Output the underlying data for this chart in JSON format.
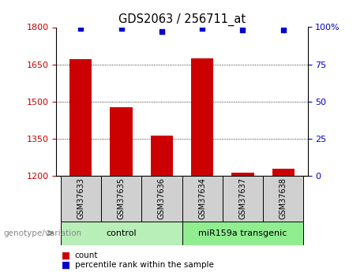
{
  "title": "GDS2063 / 256711_at",
  "samples": [
    "GSM37633",
    "GSM37635",
    "GSM37636",
    "GSM37634",
    "GSM37637",
    "GSM37638"
  ],
  "counts": [
    1672,
    1475,
    1362,
    1675,
    1212,
    1228
  ],
  "percentile_ranks": [
    99,
    99,
    97,
    99,
    98,
    98
  ],
  "groups": [
    {
      "label": "control",
      "indices": [
        0,
        1,
        2
      ],
      "color": "#b8eeb8"
    },
    {
      "label": "miR159a transgenic",
      "indices": [
        3,
        4,
        5
      ],
      "color": "#90ee90"
    }
  ],
  "ylim_left": [
    1200,
    1800
  ],
  "ylim_right": [
    0,
    100
  ],
  "yticks_left": [
    1200,
    1350,
    1500,
    1650,
    1800
  ],
  "yticks_right": [
    0,
    25,
    50,
    75,
    100
  ],
  "ytick_labels_right": [
    "0",
    "25",
    "50",
    "75",
    "100%"
  ],
  "bar_color": "#cc0000",
  "dot_color": "#0000cc",
  "bar_width": 0.55,
  "genotype_label": "genotype/variation",
  "grid_yticks": [
    1350,
    1500,
    1650
  ]
}
